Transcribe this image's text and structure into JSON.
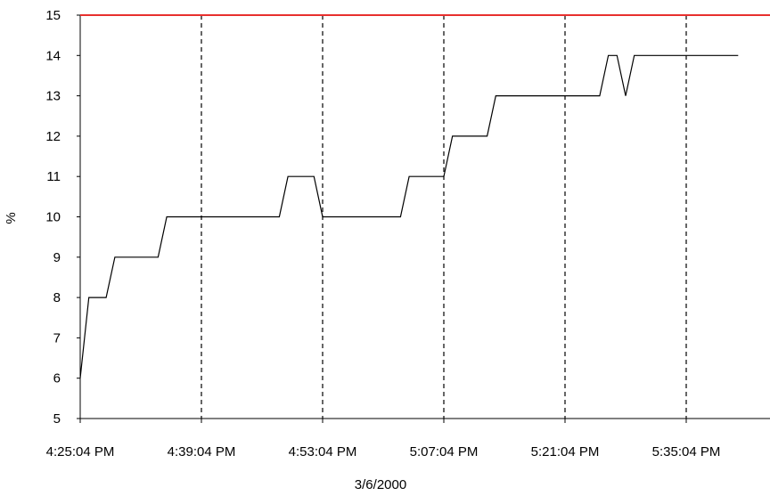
{
  "chart_data": {
    "type": "line",
    "xlabel": "3/6/2000",
    "ylabel": "%",
    "ylim": [
      5,
      15
    ],
    "yticks": [
      5,
      6,
      7,
      8,
      9,
      10,
      11,
      12,
      13,
      14,
      15
    ],
    "xtick_labels": [
      "4:25:04 PM",
      "4:39:04 PM",
      "4:53:04 PM",
      "5:07:04 PM",
      "5:21:04 PM",
      "5:35:04 PM"
    ],
    "grid": "vertical dashed lines at time ticks",
    "threshold": {
      "value": 15,
      "color": "#e8302e"
    },
    "series": [
      {
        "color": "#000000",
        "x": [
          "4:25:04 PM",
          "4:26:04 PM",
          "4:27:04 PM",
          "4:28:04 PM",
          "4:29:04 PM",
          "4:30:04 PM",
          "4:34:04 PM",
          "4:35:04 PM",
          "4:48:04 PM",
          "4:49:04 PM",
          "4:52:04 PM",
          "4:53:04 PM",
          "5:02:04 PM",
          "5:03:04 PM",
          "5:07:04 PM",
          "5:08:04 PM",
          "5:12:04 PM",
          "5:13:04 PM",
          "5:25:04 PM",
          "5:26:04 PM",
          "5:27:04 PM",
          "5:28:04 PM",
          "5:29:04 PM",
          "5:41:04 PM"
        ],
        "values": [
          6,
          8,
          8,
          8,
          9,
          9,
          9,
          10,
          10,
          11,
          11,
          10,
          10,
          11,
          11,
          12,
          12,
          13,
          13,
          14,
          14,
          13,
          14,
          14
        ]
      }
    ]
  }
}
